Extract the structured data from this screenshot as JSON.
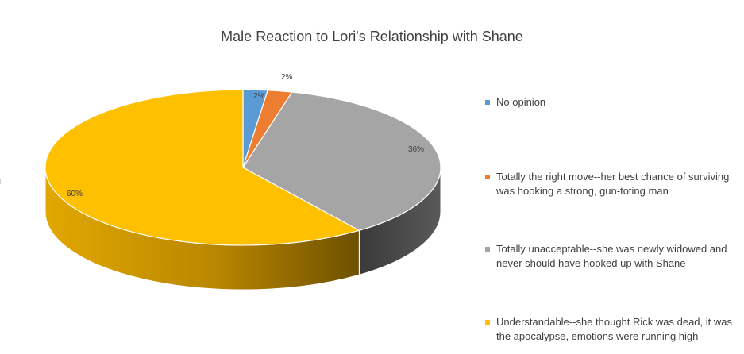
{
  "chart_data": {
    "type": "pie",
    "title": "Male Reaction to Lori's Relationship with Shane",
    "slices": [
      {
        "name": "No opinion",
        "value": 2,
        "label": "2%",
        "color": "#5b9bd5",
        "side_color": "#3c6e9c"
      },
      {
        "name": "Totally the right move--her best chance of surviving was hooking a strong, gun-toting man",
        "value": 2,
        "label": "2%",
        "color": "#ed7d31",
        "side_color": "#a9561f"
      },
      {
        "name": "Totally unacceptable--she was newly widowed and never should have hooked up with Shane",
        "value": 36,
        "label": "36%",
        "color": "#a5a5a5",
        "side_color": "#4a4a4a"
      },
      {
        "name": "Understandable--she thought Rick was dead, it was the apocalypse, emotions were running high",
        "value": 60,
        "label": "60%",
        "color": "#ffc000",
        "side_color": "#b88600"
      }
    ],
    "legend": {
      "position": "right"
    }
  }
}
